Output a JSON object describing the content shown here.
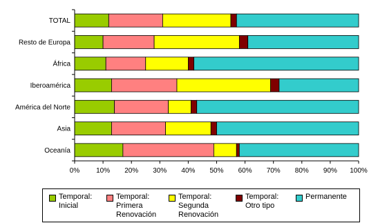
{
  "chart_data": {
    "type": "bar",
    "orientation": "horizontal",
    "stacked": true,
    "percent_stacked": true,
    "categories": [
      "TOTAL",
      "Resto de Europa",
      "África",
      "Iberoamérica",
      "América del Norte",
      "Asia",
      "Oceanía"
    ],
    "series": [
      {
        "name": "Temporal: Inicial",
        "color": "#99cc00",
        "values": [
          12,
          10,
          11,
          13,
          14,
          13,
          17
        ]
      },
      {
        "name": "Temporal: Primera Renovación",
        "color": "#ff8080",
        "values": [
          19,
          18,
          14,
          23,
          19,
          19,
          32
        ]
      },
      {
        "name": "Temporal: Segunda Renovación",
        "color": "#ffff00",
        "values": [
          24,
          30,
          15,
          33,
          8,
          16,
          8
        ]
      },
      {
        "name": "Temporal: Otro tipo",
        "color": "#800000",
        "values": [
          2,
          3,
          2,
          3,
          2,
          2,
          1
        ]
      },
      {
        "name": "Permanente",
        "color": "#33cccc",
        "values": [
          43,
          39,
          58,
          28,
          57,
          50,
          42
        ]
      }
    ],
    "xlim": [
      0,
      100
    ],
    "x_ticks": [
      "0%",
      "10%",
      "20%",
      "30%",
      "40%",
      "50%",
      "60%",
      "70%",
      "80%",
      "90%",
      "100%"
    ],
    "legend_position": "bottom",
    "grid": false
  },
  "legend": [
    {
      "name": "Temporal: Inicial",
      "label": "Temporal:\nInicial",
      "color": "#99cc00"
    },
    {
      "name": "Temporal: Primera Renovación",
      "label": "Temporal:\nPrimera\nRenovación",
      "color": "#ff8080"
    },
    {
      "name": "Temporal: Segunda Renovación",
      "label": "Temporal:\nSegunda\nRenovación",
      "color": "#ffff00"
    },
    {
      "name": "Temporal: Otro tipo",
      "label": "Temporal:\nOtro tipo",
      "color": "#800000"
    },
    {
      "name": "Permanente",
      "label": "Permanente",
      "color": "#33cccc"
    }
  ]
}
